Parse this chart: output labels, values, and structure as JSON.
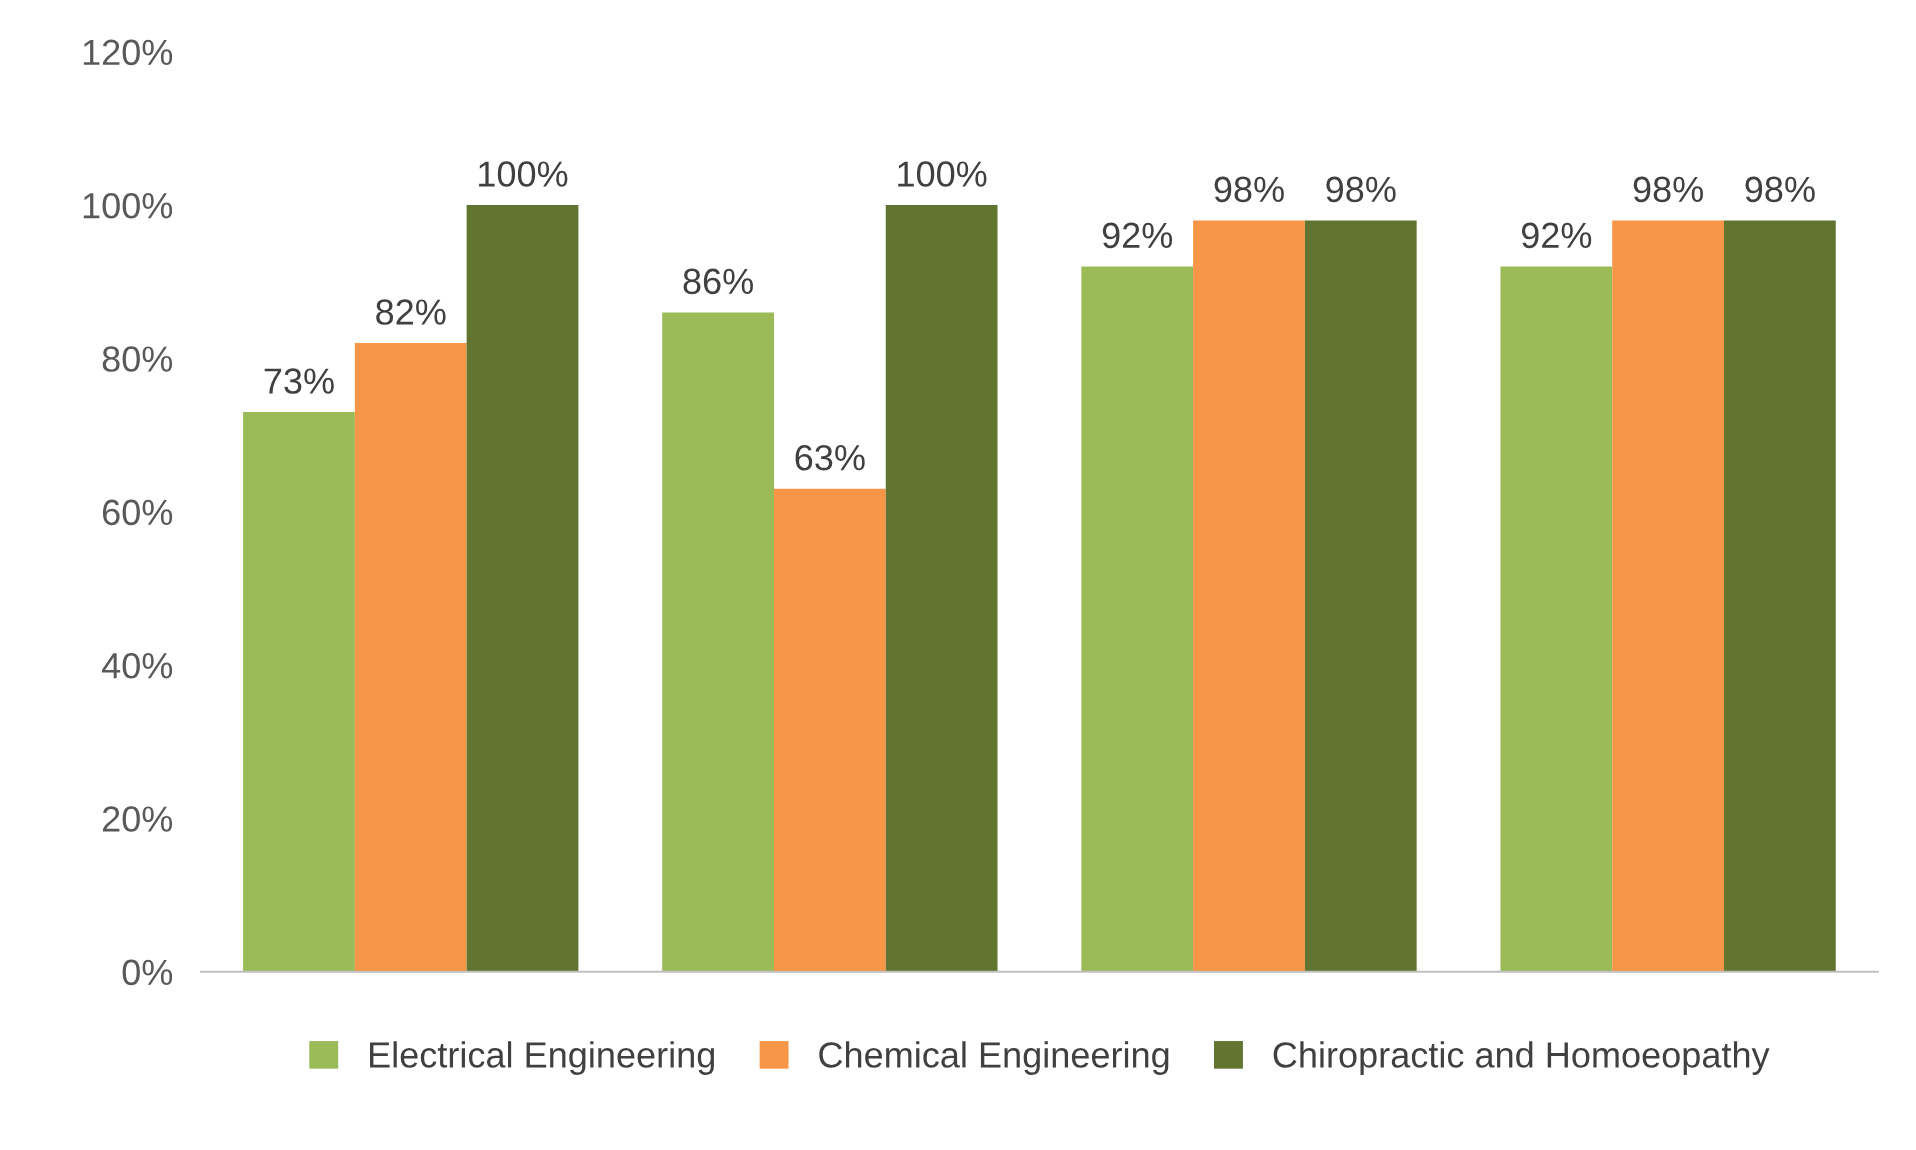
{
  "chart_data": {
    "type": "bar",
    "categories": [
      null,
      null,
      null,
      null
    ],
    "series": [
      {
        "name": "Electrical Engineering",
        "color": "#9bbb59",
        "values": [
          73,
          86,
          92,
          92
        ],
        "value_labels": [
          "73%",
          "86%",
          "92%",
          "92%"
        ]
      },
      {
        "name": "Chemical Engineering",
        "color": "#f79646",
        "values": [
          82,
          63,
          98,
          98
        ],
        "value_labels": [
          "82%",
          "63%",
          "98%",
          "98%"
        ]
      },
      {
        "name": "Chiropractic and Homoeopathy",
        "color": "#617530",
        "values": [
          100,
          100,
          98,
          98
        ],
        "value_labels": [
          "100%",
          "100%",
          "98%",
          "98%"
        ]
      }
    ],
    "ylim": [
      0,
      120
    ],
    "yticks": [
      {
        "value": 0,
        "label": "0%"
      },
      {
        "value": 20,
        "label": "20%"
      },
      {
        "value": 40,
        "label": "40%"
      },
      {
        "value": 60,
        "label": "60%"
      },
      {
        "value": 80,
        "label": "80%"
      },
      {
        "value": 100,
        "label": "100%"
      },
      {
        "value": 120,
        "label": "120%"
      }
    ],
    "legend": "bottom"
  }
}
